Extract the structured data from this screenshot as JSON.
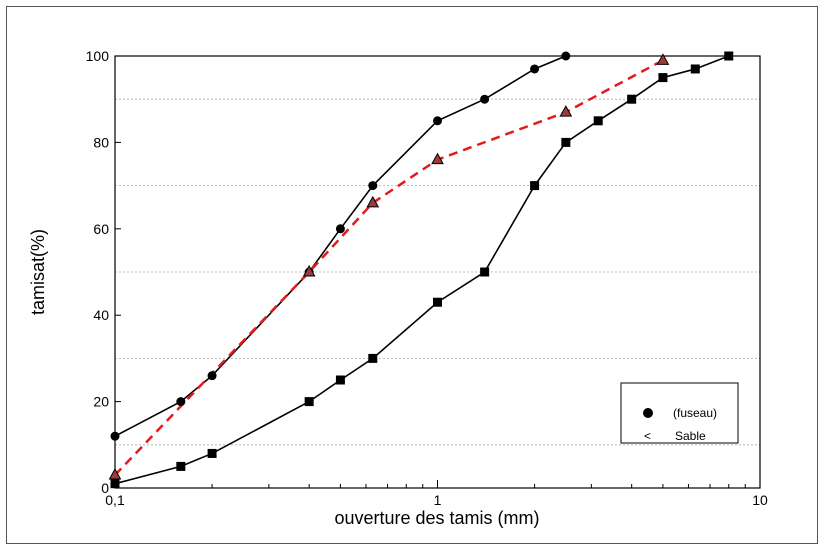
{
  "chart_data": {
    "type": "line",
    "xscale": "log",
    "xlim": [
      0.1,
      10
    ],
    "ylim": [
      0,
      100
    ],
    "xlabel": "ouverture des tamis (mm)",
    "ylabel": "tamisat(%)",
    "x_ticks": [
      {
        "value": 0.1,
        "label": "0,1"
      },
      {
        "value": 1,
        "label": "1"
      },
      {
        "value": 10,
        "label": "10"
      }
    ],
    "y_ticks": [
      0,
      20,
      40,
      60,
      80,
      100
    ],
    "grid": {
      "y_dashed": [
        10,
        30,
        50,
        70,
        90
      ]
    },
    "legend": {
      "position": "bottom-right",
      "entries": [
        {
          "marker": "circle",
          "label": "(fuseau)"
        },
        {
          "marker": "<",
          "label": "Sable"
        }
      ]
    },
    "series": [
      {
        "marker": "circle",
        "color": "#000000",
        "style": "solid",
        "x": [
          0.1,
          0.16,
          0.2,
          0.4,
          0.5,
          0.63,
          1.0,
          1.4,
          2.0,
          2.5
        ],
        "y": [
          12,
          20,
          26,
          50,
          60,
          70,
          85,
          90,
          97,
          100
        ]
      },
      {
        "marker": "square",
        "color": "#000000",
        "style": "solid",
        "x": [
          0.1,
          0.16,
          0.2,
          0.4,
          0.5,
          0.63,
          1.0,
          1.4,
          2.0,
          2.5,
          3.15,
          4.0,
          5.0,
          6.3,
          8.0
        ],
        "y": [
          1,
          5,
          8,
          20,
          25,
          30,
          43,
          50,
          70,
          80,
          85,
          90,
          95,
          97,
          100
        ]
      },
      {
        "marker": "triangle",
        "color": "#e41a1c",
        "style": "dashed",
        "x": [
          0.1,
          0.4,
          0.63,
          1.0,
          2.5,
          5.0
        ],
        "y": [
          3,
          50,
          66,
          76,
          87,
          99
        ]
      }
    ]
  }
}
